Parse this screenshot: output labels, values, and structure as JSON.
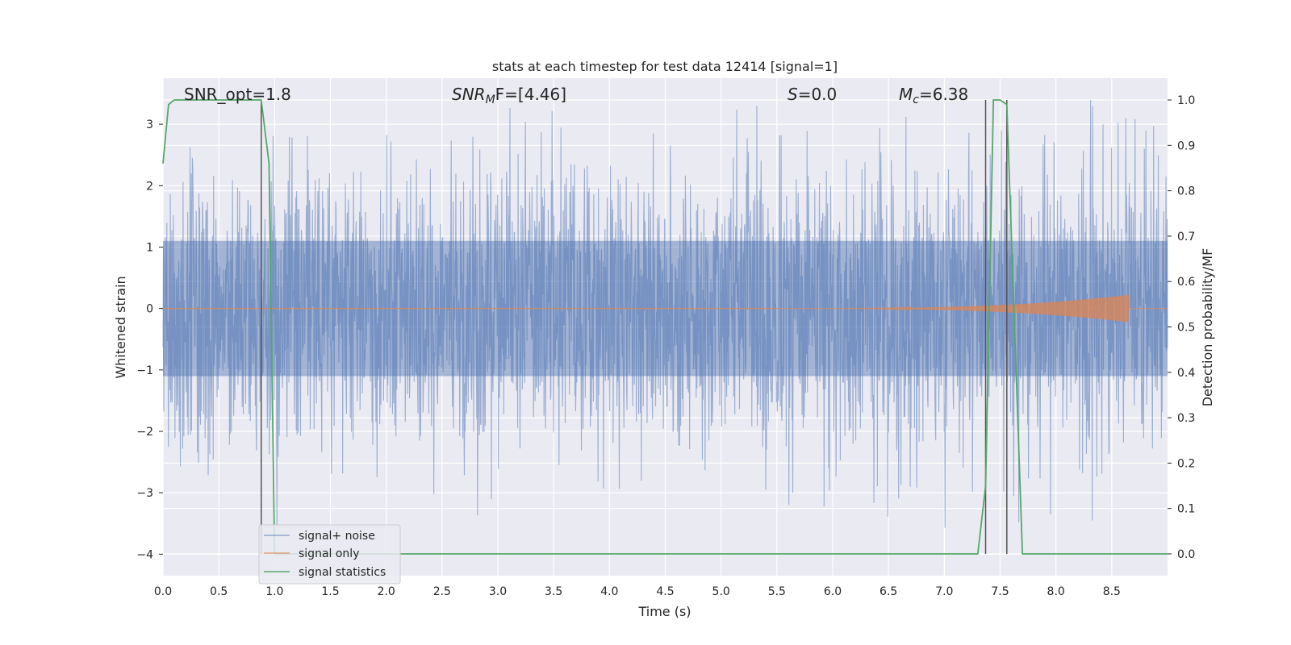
{
  "chart_data": {
    "type": "line",
    "title": "stats at each timestep for test data 12414 [signal=1]",
    "xlabel": "Time (s)",
    "ylabel": "Whitened strain",
    "y2label": "Detection probability/MF",
    "xlim": [
      0.0,
      9.0
    ],
    "ylim": [
      -4.35,
      3.75
    ],
    "y2lim": [
      -0.048,
      1.048
    ],
    "x_ticks": [
      "0.0",
      "0.5",
      "1.0",
      "1.5",
      "2.0",
      "2.5",
      "3.0",
      "3.5",
      "4.0",
      "4.5",
      "5.0",
      "5.5",
      "6.0",
      "6.5",
      "7.0",
      "7.5",
      "8.0",
      "8.5"
    ],
    "y_ticks": [
      "3",
      "2",
      "1",
      "0",
      "−1",
      "−2",
      "−3",
      "−4"
    ],
    "y2_ticks": [
      "1.0",
      "0.9",
      "0.8",
      "0.7",
      "0.6",
      "0.5",
      "0.4",
      "0.3",
      "0.2",
      "0.1",
      "0.0"
    ],
    "grid": true,
    "legend_placement": "lower-left",
    "annotations": {
      "snr_opt": "SNR_opt=1.8",
      "snr_mf_main": "SNR",
      "snr_mf_sub": "M",
      "snr_mf_rest": "F=[4.46]",
      "s_main": "S",
      "s_rest": "=0.0",
      "mc_main": "M",
      "mc_sub": "c",
      "mc_rest": "=6.38"
    },
    "series": [
      {
        "name": "signal+ noise",
        "color": "#4c72b0",
        "axis": "left",
        "description_of_values": "noise band",
        "band_core": [
          -1.1,
          1.1
        ],
        "typical_envelope": [
          -2.0,
          2.3
        ],
        "extremes": [
          -3.6,
          3.4
        ]
      },
      {
        "name": "signal only",
        "color": "#dd8452",
        "axis": "left",
        "chirp_start": 5.5,
        "chirp_end": 8.65,
        "peak_amplitude": 0.22
      },
      {
        "name": "signal statistics",
        "color": "#55a868",
        "axis": "right",
        "x": [
          0.0,
          0.05,
          0.1,
          0.2,
          0.3,
          0.4,
          0.5,
          0.6,
          0.7,
          0.8,
          0.88,
          0.95,
          1.0,
          1.1,
          1.5,
          2.0,
          3.0,
          4.0,
          5.0,
          6.0,
          7.0,
          7.3,
          7.37,
          7.44,
          7.5,
          7.56,
          7.7,
          7.75,
          8.0,
          8.5,
          9.0
        ],
        "y": [
          0.86,
          0.99,
          1.0,
          1.0,
          1.0,
          1.0,
          1.0,
          1.0,
          1.0,
          1.0,
          1.0,
          0.86,
          0.0,
          0.0,
          0.0,
          0.0,
          0.0,
          0.0,
          0.0,
          0.0,
          0.0,
          0.0,
          0.15,
          1.0,
          1.0,
          0.99,
          0.0,
          0.0,
          0.0,
          0.0,
          0.0
        ]
      }
    ],
    "vlines": [
      {
        "x": 0.88,
        "color": "#555555"
      },
      {
        "x": 7.37,
        "color": "#555555"
      },
      {
        "x": 7.56,
        "color": "#555555"
      }
    ]
  }
}
